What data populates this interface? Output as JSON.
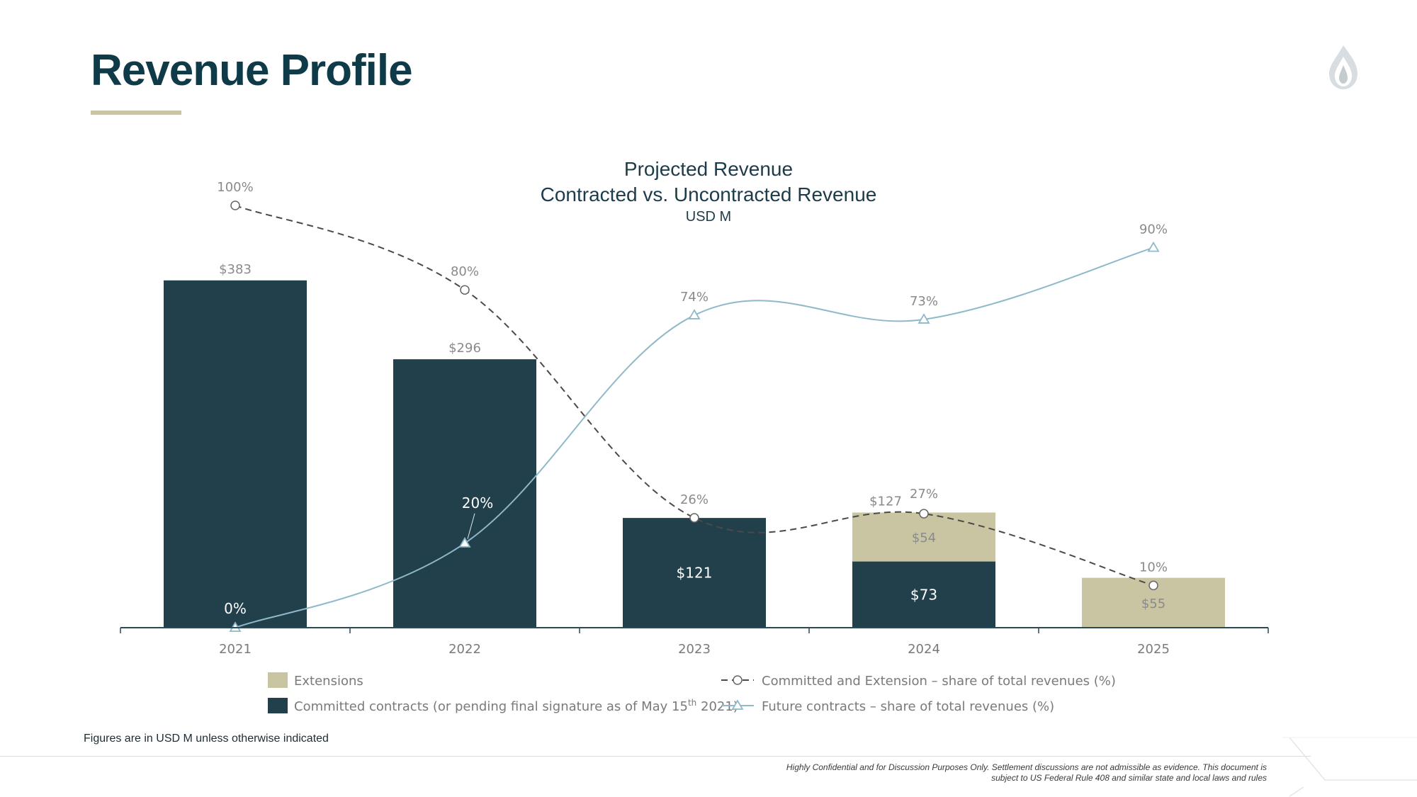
{
  "page": {
    "title": "Revenue Profile",
    "note": "Figures are in USD M unless otherwise indicated",
    "disclaimer_line1": "Highly Confidential and for Discussion Purposes Only. Settlement discussions are not admissible as evidence. This document is",
    "disclaimer_line2": "subject to US Federal Rule 408 and similar state and local laws and rules",
    "logo_icon": "flame-logo-icon"
  },
  "colors": {
    "title": "#0f3a48",
    "committed": "#22404c",
    "extensions": "#c9c5a2",
    "committed_ext_line": "#4a4a4a",
    "future_line": "#8fb9c9",
    "accent_underline": "#c9c5a2"
  },
  "chart_data": {
    "type": "bar",
    "title": "Projected Revenue",
    "subtitle": "Contracted vs. Uncontracted Revenue",
    "unit": "USD M",
    "stacked": true,
    "categories": [
      "2021",
      "2022",
      "2023",
      "2024",
      "2025"
    ],
    "series": [
      {
        "name": "Committed contracts (or pending final signature as of May 15th 2021)",
        "legend_main": "Committed contracts (or pending final signature as of May 15",
        "legend_sup": "th",
        "legend_end": " 2021)",
        "values": [
          383,
          296,
          121,
          73,
          0
        ],
        "labels": [
          "$383",
          "$296",
          "$121",
          "$73",
          ""
        ]
      },
      {
        "name": "Extensions",
        "values": [
          0,
          0,
          0,
          54,
          55
        ],
        "labels": [
          "",
          "",
          "",
          "$54",
          "$55"
        ]
      }
    ],
    "totals": {
      "values": [
        383,
        296,
        121,
        127,
        55
      ],
      "labels": [
        "",
        "",
        "",
        "$127",
        ""
      ]
    },
    "lines": [
      {
        "name": "Committed and Extension – share of total revenues (%)",
        "values": [
          100,
          80,
          26,
          27,
          10
        ],
        "labels": [
          "100%",
          "80%",
          "26%",
          "27%",
          "10%"
        ],
        "style": "dashed",
        "marker": "circle"
      },
      {
        "name": "Future contracts – share of total revenues (%)",
        "values": [
          0,
          20,
          74,
          73,
          90
        ],
        "labels": [
          "0%",
          "20%",
          "74%",
          "73%",
          "90%"
        ],
        "style": "solid",
        "marker": "triangle"
      }
    ],
    "ylim": [
      0,
      400
    ],
    "y2lim": [
      0,
      100
    ],
    "grid": false,
    "legend": "bottom"
  }
}
